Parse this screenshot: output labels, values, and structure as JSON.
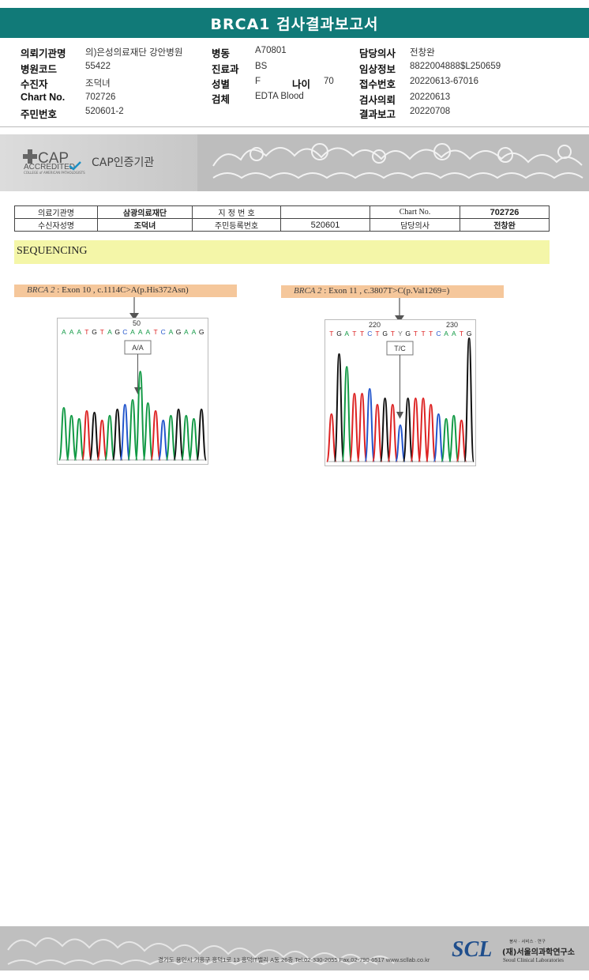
{
  "title": "BRCA1 검사결과보고서",
  "info": {
    "institution_label": "의뢰기관명",
    "institution": "의)은성의료재단 강안병원",
    "hospital_code_label": "병원코드",
    "hospital_code": "55422",
    "recipient_label": "수진자",
    "recipient": "조덕녀",
    "chart_no_label": "Chart No.",
    "chart_no": "702726",
    "id_label": "주민번호",
    "id": "520601-2",
    "ward_label": "병동",
    "ward": "A70801",
    "department_label": "진료과",
    "department": "BS",
    "sex_label": "성별",
    "sex": "F",
    "age_label": "나이",
    "age": "70",
    "specimen_label": "검체",
    "specimen": "EDTA Blood",
    "doctor_label": "담당의사",
    "doctor": "전창완",
    "clinical_label": "임상정보",
    "clinical": "8822004888$L250659",
    "receipt_label": "접수번호",
    "receipt": "20220613-67016",
    "request_label": "검사의뢰",
    "request": "20220613",
    "report_label": "결과보고",
    "report": "20220708"
  },
  "cap": {
    "logo": "CAP",
    "accredited": "ACCREDITED",
    "college": "COLLEGE of AMERICAN PATHOLOGISTS",
    "org_label": "CAP인증기관"
  },
  "summary": {
    "inst_label": "의료기관명",
    "inst": "삼광의료재단",
    "designation_label": "지 정 번 호",
    "designation": "",
    "chart_label": "Chart No.",
    "chart": "702726",
    "name_label": "수신자성명",
    "name": "조덕녀",
    "rrn_label": "주민등록번호",
    "rrn": "520601",
    "doctor_label": "담당의사",
    "doctor": "전창완"
  },
  "sequencing": {
    "header": "SEQUENCING",
    "variant1": {
      "gene": "BRCA 2",
      "detail": ": Exon 10 , c.1114C>A(p.His372Asn)",
      "position": "50",
      "bases": "AAATGTAGCAAATCAGAAG",
      "call": "A/A"
    },
    "variant2": {
      "gene": "BRCA 2",
      "detail": ": Exon 11 , c.3807T>C(p.Val1269=)",
      "position1": "220",
      "position2": "230",
      "bases": "TGATTCTGTYGTTTCAATG",
      "call": "T/C"
    },
    "base_colors": {
      "A": "#119944",
      "T": "#dd2222",
      "G": "#111111",
      "C": "#2255cc",
      "Y": "#777777"
    }
  },
  "footer": {
    "address": "경기도 용인시 기흥구 흥덕1로 13 흥덕IT밸리 A동 26층  Tel.02-330-2055  Fax.02-790-6517  www.scllab.co.kr",
    "logo": "SCL",
    "slogan": "봉사 · 서비스 · 연구",
    "name_ko": "(재)서울의과학연구소",
    "name_en": "Seoul Clinical Laboratories"
  }
}
